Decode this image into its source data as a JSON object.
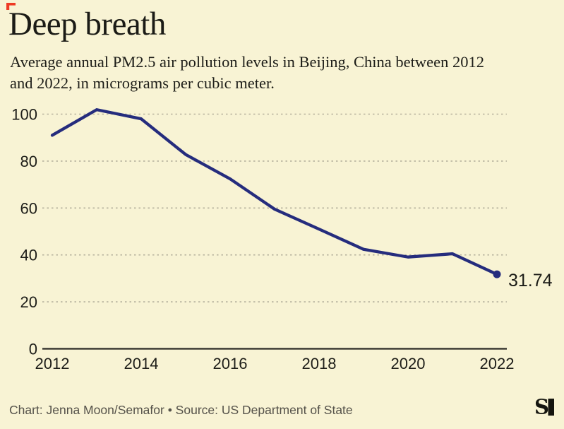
{
  "header": {
    "title": "Deep breath",
    "subtitle_line1": "Average annual PM2.5 air pollution levels in Beijing, China between 2012",
    "subtitle_line2": "and 2022, in micrograms per cubic meter."
  },
  "chart_data": {
    "type": "line",
    "title": "Deep breath",
    "subtitle": "Average annual PM2.5 air pollution levels in Beijing, China between 2012 and 2022, in micrograms per cubic meter.",
    "x": [
      2012,
      2013,
      2014,
      2015,
      2016,
      2017,
      2018,
      2019,
      2020,
      2021,
      2022
    ],
    "values": [
      91,
      101.9,
      98,
      82.8,
      72.4,
      59.5,
      51,
      42.4,
      39.1,
      40.5,
      31.74
    ],
    "unit": "micrograms per cubic meter",
    "xlabel": "",
    "ylabel": "",
    "ylim": [
      0,
      105
    ],
    "yticks": [
      0,
      20,
      40,
      60,
      80,
      100
    ],
    "xticks": [
      2012,
      2014,
      2016,
      2018,
      2020,
      2022
    ],
    "grid": "horizontal-dotted",
    "legend": "none",
    "line_color": "#252c7d",
    "end_label": "31.74"
  },
  "footer": {
    "credit": "Chart: Jenna Moon/Semafor • Source: US Department of State"
  },
  "colors": {
    "background": "#f8f3d4",
    "accent_navy": "#252c7d",
    "accent_red": "#ee3a23",
    "gridline": "#b5b19d",
    "credit_grey": "#55524a",
    "logo_black": "#15150f"
  }
}
